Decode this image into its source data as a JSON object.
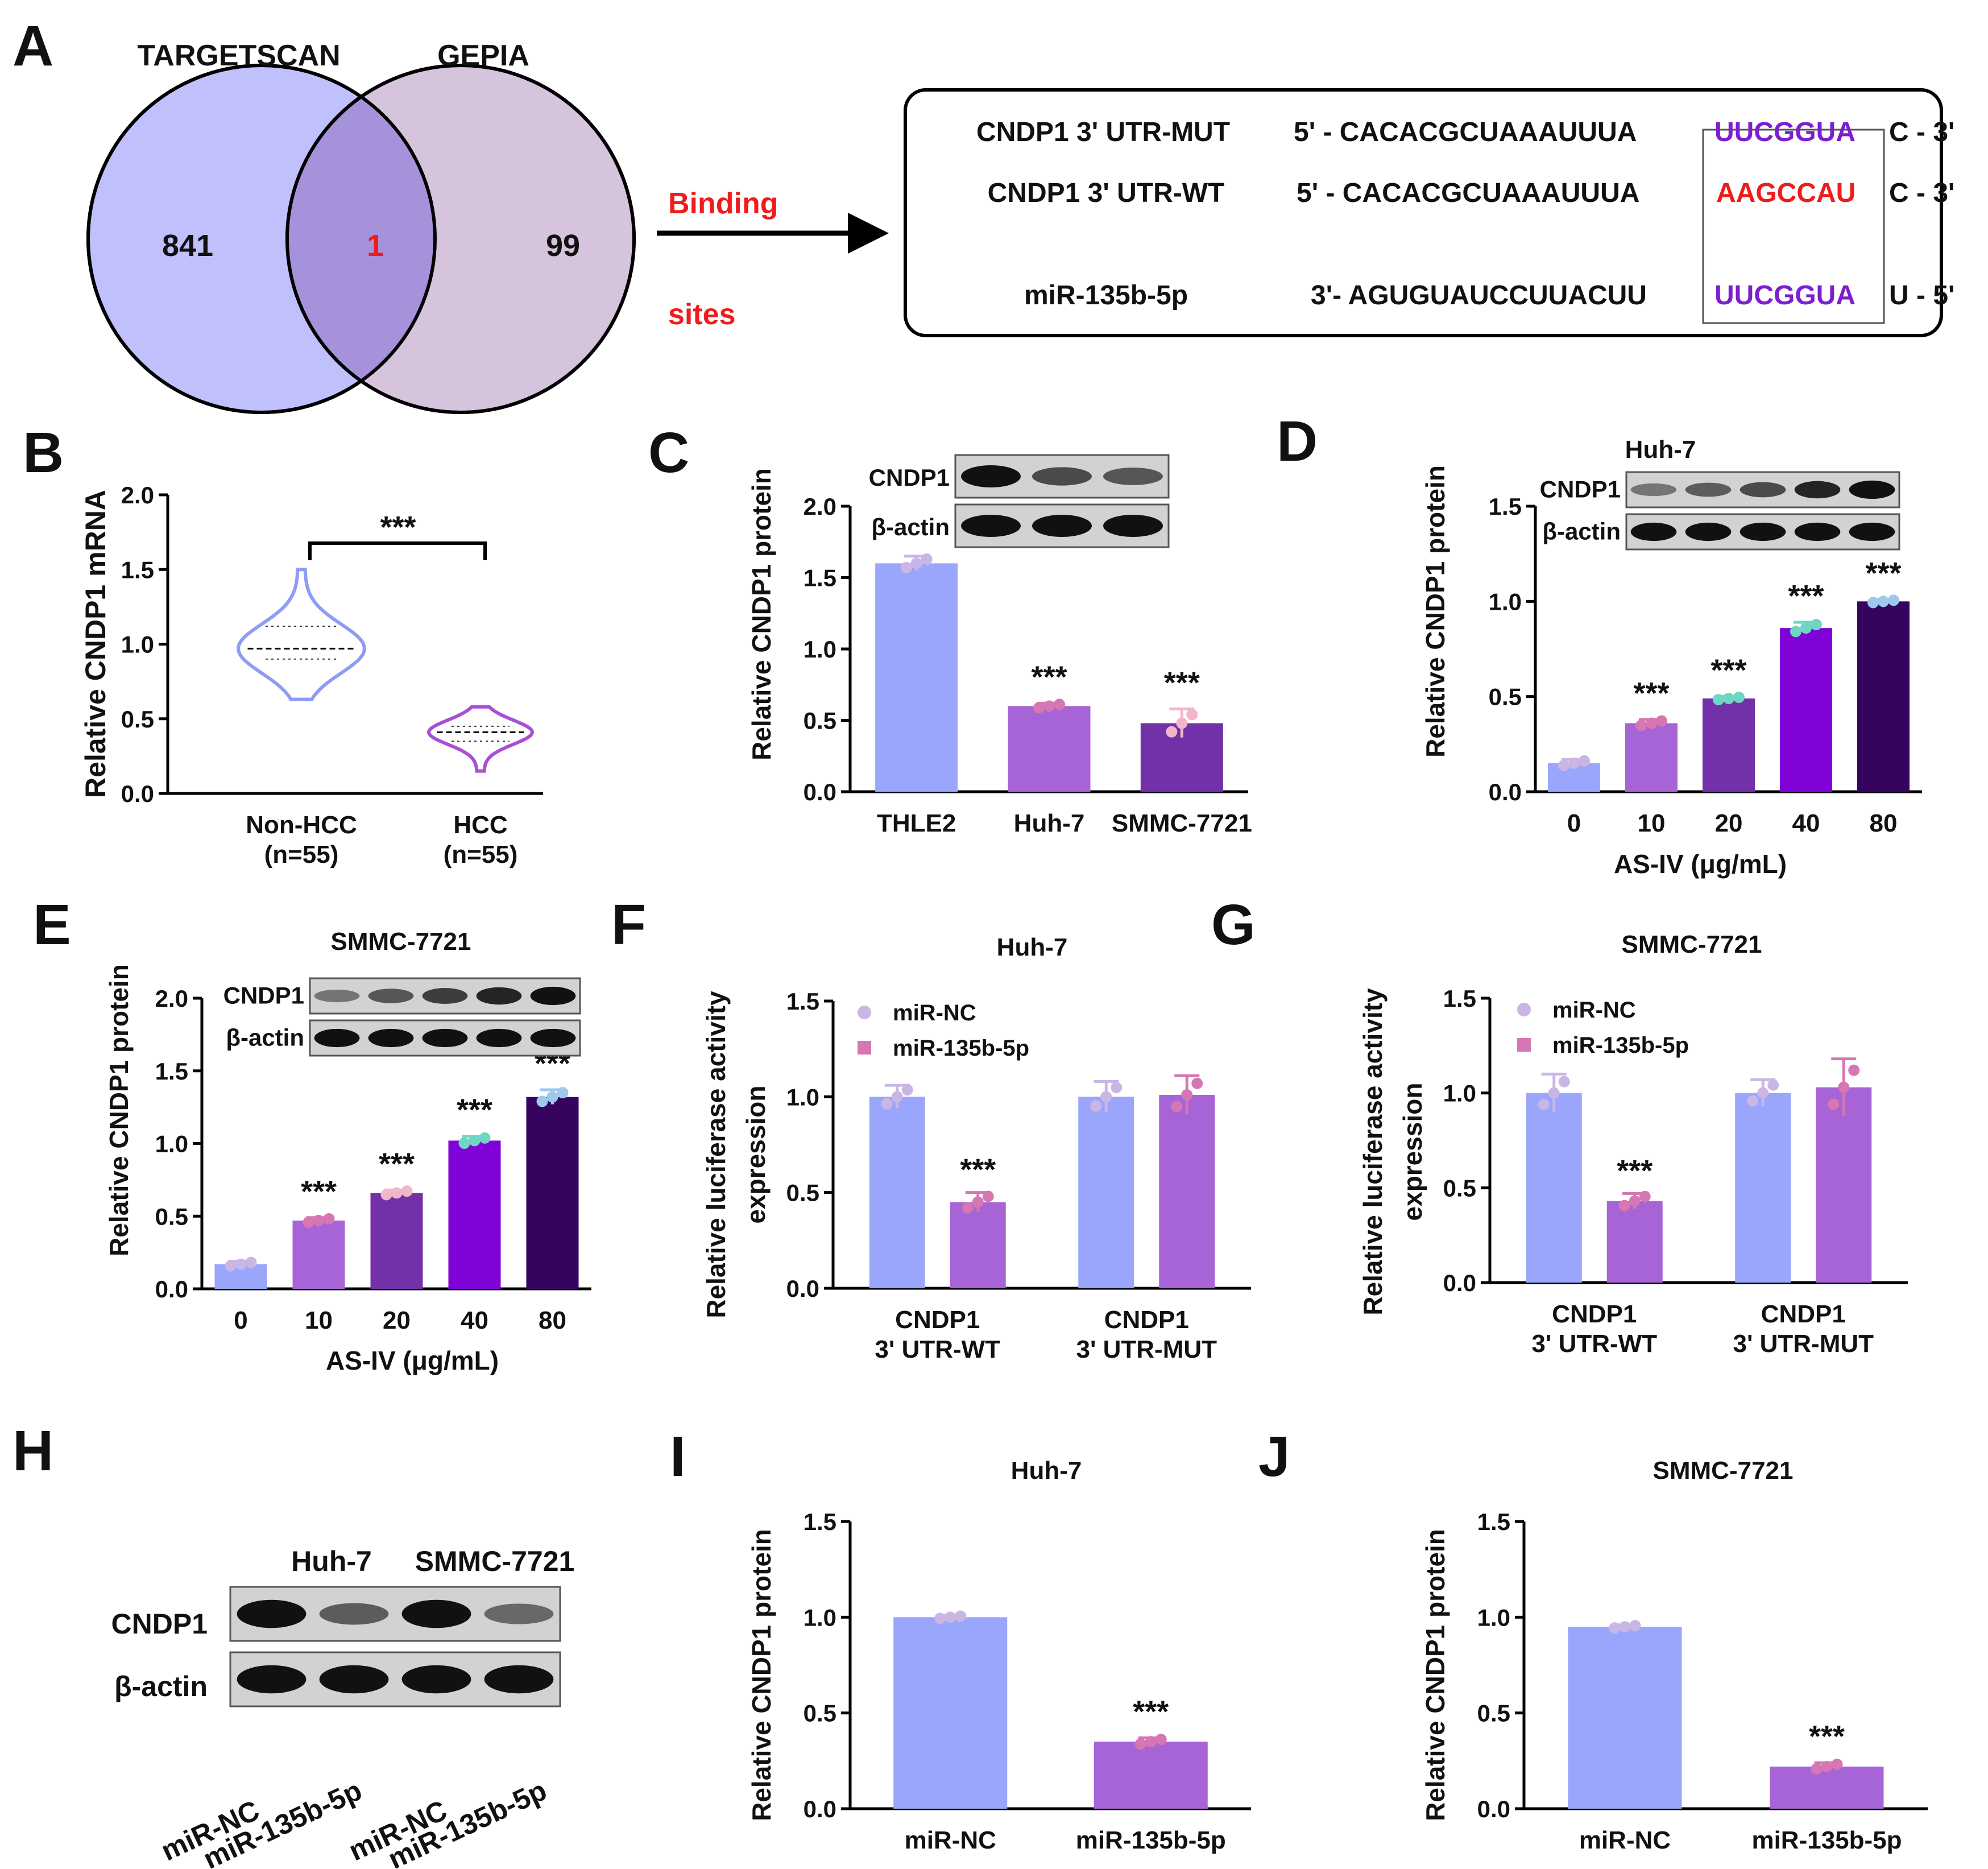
{
  "colors": {
    "nc_blue": "#99a6fb",
    "mir_purple": "#a764d6",
    "violet_dark": "#7231a8",
    "violet_bright": "#7f02d6",
    "violet_deep": "#36045e",
    "venn_left": "#c0c0fc",
    "venn_right": "#d6c3dc",
    "venn_overlap": "#a592da",
    "seq_purple": "#7d1ed0",
    "seq_red": "#ee1d1d",
    "band": "#111111",
    "blot_bg": "#d2d2d2"
  },
  "panelA": {
    "label": "A",
    "set_left": "TARGETSCAN",
    "set_right": "GEPIA",
    "count_left": "841",
    "count_overlap": "1",
    "count_right": "99",
    "arrow_top": "Binding",
    "arrow_bottom": "sites",
    "rows": [
      {
        "name": "CNDP1 3' UTR-MUT",
        "prefix": "5' - CACACGCUAAAUUUA",
        "site": "UUCGGUA",
        "suffix": "C - 3'"
      },
      {
        "name": "CNDP1 3' UTR-WT",
        "prefix": "5' - CACACGCUAAAUUUA",
        "site": "AAGCCAU",
        "suffix": "C - 3'"
      },
      {
        "name": "miR-135b-5p",
        "prefix": "3'- AGUGUAUCCUUACUU",
        "site": "UUCGGUA",
        "suffix": "U - 5'"
      }
    ]
  },
  "panelB": {
    "label": "B",
    "ylabel": "Relative CNDP1 mRNA",
    "sig": "***"
  },
  "panelC": {
    "label": "C",
    "ylabel": "Relative CNDP1 protein",
    "blot": [
      "CNDP1",
      "β-actin"
    ]
  },
  "panelD": {
    "label": "D",
    "title": "Huh-7",
    "ylabel": "Relative CNDP1 protein",
    "xlabel": "AS-IV (μg/mL)",
    "blot": [
      "CNDP1",
      "β-actin"
    ]
  },
  "panelE": {
    "label": "E",
    "title": "SMMC-7721",
    "ylabel": "Relative CNDP1 protein",
    "xlabel": "AS-IV (μg/mL)",
    "blot": [
      "CNDP1",
      "β-actin"
    ]
  },
  "panelF": {
    "label": "F",
    "title": "Huh-7",
    "ylabel1": "Relative luciferase activity",
    "ylabel2": "expression",
    "legend": [
      "miR-NC",
      "miR-135b-5p"
    ]
  },
  "panelG": {
    "label": "G",
    "title": "SMMC-7721",
    "ylabel1": "Relative luciferase activity",
    "ylabel2": "expression",
    "legend": [
      "miR-NC",
      "miR-135b-5p"
    ]
  },
  "panelH": {
    "label": "H",
    "groups": [
      "Huh-7",
      "SMMC-7721"
    ],
    "rows": [
      "CNDP1",
      "β-actin"
    ],
    "lanes": [
      "miR-NC",
      "miR-135b-5p",
      "miR-NC",
      "miR-135b-5p"
    ]
  },
  "panelI": {
    "label": "I",
    "title": "Huh-7",
    "ylabel": "Relative CNDP1 protein"
  },
  "panelJ": {
    "label": "J",
    "title": "SMMC-7721",
    "ylabel": "Relative CNDP1 protein"
  },
  "chart_data": [
    {
      "id": "B",
      "type": "violin",
      "categories": [
        "Non-HCC\n(n=55)",
        "HCC\n(n=55)"
      ],
      "series": [
        {
          "name": "Non-HCC",
          "median": 0.97,
          "q1": 0.9,
          "q3": 1.12,
          "min": 0.63,
          "max": 1.5
        },
        {
          "name": "HCC",
          "median": 0.41,
          "q1": 0.35,
          "q3": 0.45,
          "min": 0.15,
          "max": 0.58
        }
      ],
      "ylabel": "Relative CNDP1 mRNA",
      "ylim": [
        0,
        2.0
      ],
      "yticks": [
        0.0,
        0.5,
        1.0,
        1.5,
        2.0
      ],
      "significance": "***"
    },
    {
      "id": "C",
      "type": "bar",
      "categories": [
        "THLE2",
        "Huh-7",
        "SMMC-7721"
      ],
      "values": [
        1.6,
        0.6,
        0.48
      ],
      "errors": [
        0.05,
        0.02,
        0.1
      ],
      "sig": [
        "",
        "***",
        "***"
      ],
      "ylabel": "Relative CNDP1 protein",
      "ylim": [
        0,
        2.0
      ],
      "yticks": [
        0.0,
        0.5,
        1.0,
        1.5,
        2.0
      ]
    },
    {
      "id": "D",
      "type": "bar",
      "title": "Huh-7",
      "categories": [
        "0",
        "10",
        "20",
        "40",
        "80"
      ],
      "values": [
        0.15,
        0.36,
        0.49,
        0.86,
        1.0
      ],
      "errors": [
        0.02,
        0.02,
        0.01,
        0.03,
        0.01
      ],
      "sig": [
        "",
        "***",
        "***",
        "***",
        "***"
      ],
      "xlabel": "AS-IV (μg/mL)",
      "ylabel": "Relative CNDP1 protein",
      "ylim": [
        0,
        1.5
      ],
      "yticks": [
        0.0,
        0.5,
        1.0,
        1.5
      ]
    },
    {
      "id": "E",
      "type": "bar",
      "title": "SMMC-7721",
      "categories": [
        "0",
        "10",
        "20",
        "40",
        "80"
      ],
      "values": [
        0.17,
        0.47,
        0.66,
        1.02,
        1.32
      ],
      "errors": [
        0.02,
        0.02,
        0.02,
        0.03,
        0.05
      ],
      "sig": [
        "",
        "***",
        "***",
        "***",
        "***"
      ],
      "xlabel": "AS-IV (μg/mL)",
      "ylabel": "Relative CNDP1 protein",
      "ylim": [
        0,
        2.0
      ],
      "yticks": [
        0.0,
        0.5,
        1.0,
        1.5,
        2.0
      ]
    },
    {
      "id": "F",
      "type": "bar",
      "title": "Huh-7",
      "categories": [
        "CNDP1\n3' UTR-WT",
        "CNDP1\n3' UTR-MUT"
      ],
      "series": [
        {
          "name": "miR-NC",
          "values": [
            1.0,
            1.0
          ],
          "errors": [
            0.06,
            0.08
          ]
        },
        {
          "name": "miR-135b-5p",
          "values": [
            0.45,
            1.01
          ],
          "errors": [
            0.05,
            0.1
          ]
        }
      ],
      "sig": [
        "***",
        ""
      ],
      "ylabel": "Relative luciferase activity expression",
      "ylim": [
        0,
        1.5
      ],
      "yticks": [
        0.0,
        0.5,
        1.0,
        1.5
      ]
    },
    {
      "id": "G",
      "type": "bar",
      "title": "SMMC-7721",
      "categories": [
        "CNDP1\n3' UTR-WT",
        "CNDP1\n3' UTR-MUT"
      ],
      "series": [
        {
          "name": "miR-NC",
          "values": [
            1.0,
            1.0
          ],
          "errors": [
            0.1,
            0.07
          ]
        },
        {
          "name": "miR-135b-5p",
          "values": [
            0.43,
            1.03
          ],
          "errors": [
            0.04,
            0.15
          ]
        }
      ],
      "sig": [
        "***",
        ""
      ],
      "ylabel": "Relative luciferase activity expression",
      "ylim": [
        0,
        1.5
      ],
      "yticks": [
        0.0,
        0.5,
        1.0,
        1.5
      ]
    },
    {
      "id": "I",
      "type": "bar",
      "title": "Huh-7",
      "categories": [
        "miR-NC",
        "miR-135b-5p"
      ],
      "values": [
        1.0,
        0.35
      ],
      "errors": [
        0.01,
        0.02
      ],
      "sig": [
        "",
        "***"
      ],
      "ylabel": "Relative CNDP1 protein",
      "ylim": [
        0,
        1.5
      ],
      "yticks": [
        0.0,
        0.5,
        1.0,
        1.5
      ]
    },
    {
      "id": "J",
      "type": "bar",
      "title": "SMMC-7721",
      "categories": [
        "miR-NC",
        "miR-135b-5p"
      ],
      "values": [
        0.95,
        0.22
      ],
      "errors": [
        0.01,
        0.02
      ],
      "sig": [
        "",
        "***"
      ],
      "ylabel": "Relative CNDP1 protein",
      "ylim": [
        0,
        1.5
      ],
      "yticks": [
        0.0,
        0.5,
        1.0,
        1.5
      ]
    }
  ]
}
